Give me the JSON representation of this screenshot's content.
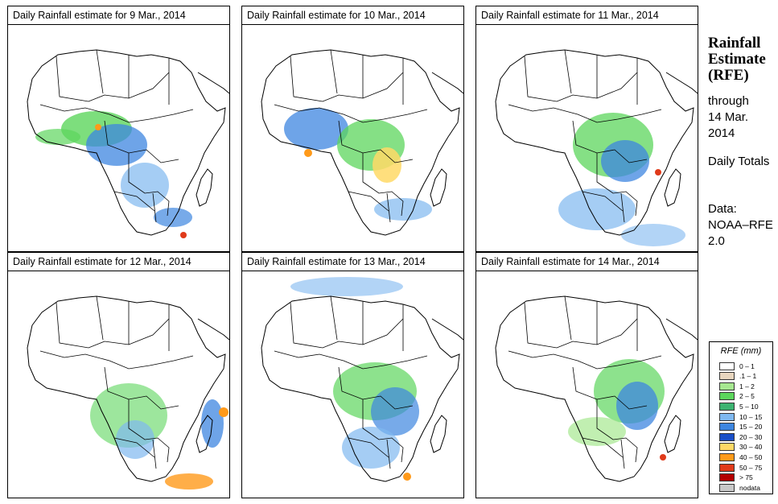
{
  "panels": [
    {
      "title_prefix": "Daily Rainfall estimate for",
      "date": "9 Mar., 2014"
    },
    {
      "title_prefix": "Daily Rainfall estimate for",
      "date": "10 Mar., 2014"
    },
    {
      "title_prefix": "Daily Rainfall estimate for",
      "date": "11 Mar., 2014"
    },
    {
      "title_prefix": "Daily Rainfall estimate for",
      "date": "12 Mar., 2014"
    },
    {
      "title_prefix": "Daily Rainfall estimate for",
      "date": "13 Mar., 2014"
    },
    {
      "title_prefix": "Daily Rainfall estimate for",
      "date": "14 Mar., 2014"
    }
  ],
  "sidebar": {
    "title": "Rainfall Estimate (RFE)",
    "through_label": "through",
    "through_date": "14 Mar. 2014",
    "totals_label": "Daily Totals",
    "data_source": "Data: NOAA–RFE 2.0"
  },
  "legend": {
    "title": "RFE (mm)",
    "items": [
      {
        "label": "0 – 1",
        "color": "#ffffff"
      },
      {
        "label": ".1 – 1",
        "color": "#e8d6bf"
      },
      {
        "label": "1 – 2",
        "color": "#a6e890"
      },
      {
        "label": "2 – 5",
        "color": "#5cd65c"
      },
      {
        "label": "5 – 10",
        "color": "#3cb371"
      },
      {
        "label": "10 – 15",
        "color": "#7fb8f0"
      },
      {
        "label": "15 – 20",
        "color": "#3d86e0"
      },
      {
        "label": "20 – 30",
        "color": "#1a4fc7"
      },
      {
        "label": "30 – 40",
        "color": "#ffd966"
      },
      {
        "label": "40 – 50",
        "color": "#ff9a1a"
      },
      {
        "label": "50 – 75",
        "color": "#e03a1a"
      },
      {
        "label": "> 75",
        "color": "#b30000"
      },
      {
        "label": "nodata",
        "color": "#c8c8c8"
      }
    ]
  }
}
